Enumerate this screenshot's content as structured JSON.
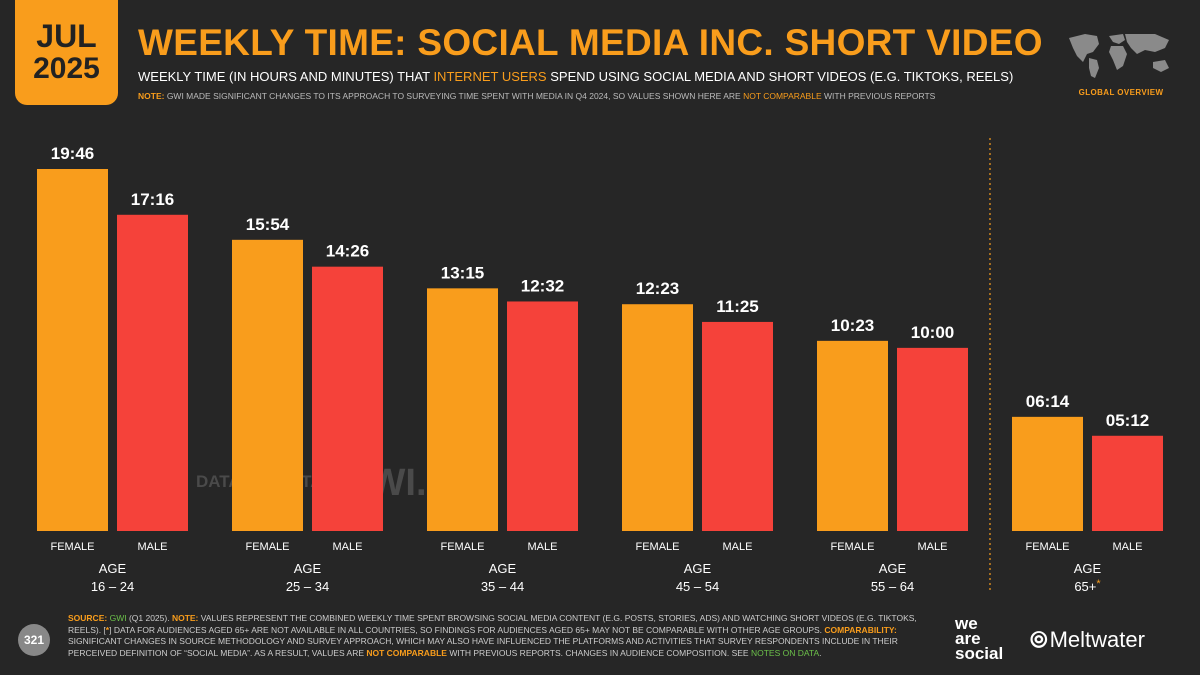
{
  "header": {
    "month": "JUL",
    "year": "2025",
    "title": "WEEKLY TIME: SOCIAL MEDIA INC. SHORT VIDEO",
    "subtitle_pre": "WEEKLY TIME (IN HOURS AND MINUTES) THAT ",
    "subtitle_hl": "INTERNET USERS",
    "subtitle_post": " SPEND USING SOCIAL MEDIA AND SHORT VIDEOS (E.G. TIKTOKS, REELS)",
    "note_label": "NOTE:",
    "note_pre": " GWI MADE SIGNIFICANT CHANGES TO ITS APPROACH TO SURVEYING TIME SPENT WITH MEDIA IN Q4 2024, SO VALUES SHOWN HERE ARE ",
    "note_hl": "NOT COMPARABLE",
    "note_post": " WITH PREVIOUS REPORTS",
    "global_label": "GLOBAL OVERVIEW"
  },
  "chart_data": {
    "type": "bar",
    "series": [
      {
        "name": "FEMALE",
        "values": [
          "19:46",
          "15:54",
          "13:15",
          "12:23",
          "10:23",
          "06:14"
        ]
      },
      {
        "name": "MALE",
        "values": [
          "17:16",
          "14:26",
          "12:32",
          "11:25",
          "10:00",
          "05:12"
        ]
      }
    ],
    "groups": [
      {
        "label": "AGE",
        "range": "16 – 24",
        "asterisk": ""
      },
      {
        "label": "AGE",
        "range": "25 – 34",
        "asterisk": ""
      },
      {
        "label": "AGE",
        "range": "35 – 44",
        "asterisk": ""
      },
      {
        "label": "AGE",
        "range": "45 – 54",
        "asterisk": ""
      },
      {
        "label": "AGE",
        "range": "55 – 64",
        "asterisk": ""
      },
      {
        "label": "AGE",
        "range": "65+",
        "asterisk": "*"
      }
    ],
    "colors": {
      "female": "#f99d1c",
      "male": "#f5423a"
    },
    "watermarks": [
      "DATAREPORTAL",
      "GWI."
    ]
  },
  "footer": {
    "source_label": "SOURCE:",
    "source_gwi": "GWI",
    "source_text": " (Q1 2025). ",
    "note_label": "NOTE:",
    "note_text": " VALUES REPRESENT THE COMBINED WEEKLY TIME SPENT BROWSING SOCIAL MEDIA CONTENT (E.G. POSTS, STORIES, ADS) AND WATCHING SHORT VIDEOS (E.G. TIKTOKS, REELS). [",
    "note_star": "*",
    "note_text2": "] DATA FOR AUDIENCES AGED 65+ ARE NOT AVAILABLE IN ALL COUNTRIES, SO FINDINGS FOR AUDIENCES AGED 65+ MAY NOT BE COMPARABLE WITH OTHER AGE GROUPS. ",
    "comp_label": "COMPARABILITY:",
    "comp_text": " SIGNIFICANT CHANGES IN SOURCE METHODOLOGY AND SURVEY APPROACH, WHICH MAY ALSO HAVE INFLUENCED THE PLATFORMS AND ACTIVITIES THAT SURVEY RESPONDENTS INCLUDE IN THEIR PERCEIVED DEFINITION OF “SOCIAL MEDIA”. AS A RESULT, VALUES ARE ",
    "comp_hl": "NOT COMPARABLE",
    "comp_text2": " WITH PREVIOUS REPORTS. CHANGES IN AUDIENCE COMPOSITION. SEE ",
    "notes_link": "NOTES ON DATA",
    "comp_end": ".",
    "page": "321",
    "brand_was_1": "we",
    "brand_was_2": "are",
    "brand_was_3": "social",
    "brand_mw": "Meltwater"
  }
}
